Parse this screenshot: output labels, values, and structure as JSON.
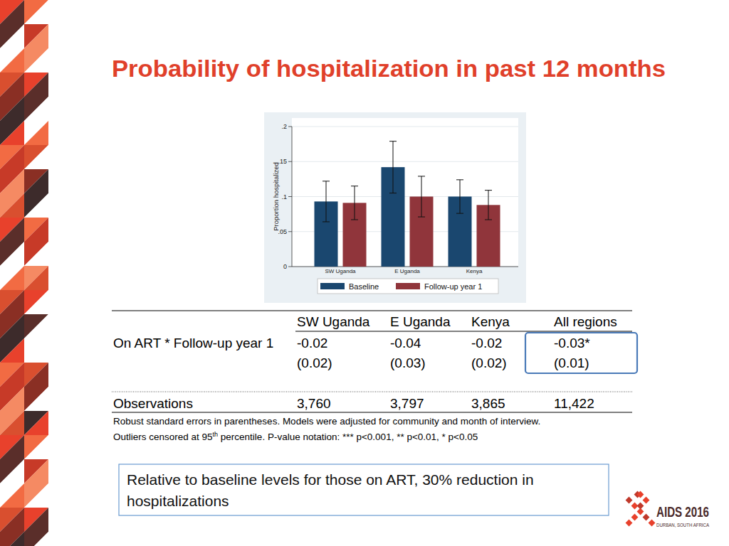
{
  "title": "Probability of hospitalization in past 12 months",
  "chart_data": {
    "type": "bar",
    "categories": [
      "SW Uganda",
      "E Uganda",
      "Kenya"
    ],
    "series": [
      {
        "name": "Baseline",
        "color": "#1a476f",
        "values": [
          0.093,
          0.142,
          0.1
        ],
        "errors": [
          0.029,
          0.037,
          0.024
        ]
      },
      {
        "name": "Follow-up year 1",
        "color": "#90353b",
        "values": [
          0.091,
          0.1,
          0.088
        ],
        "errors": [
          0.024,
          0.029,
          0.021
        ]
      }
    ],
    "ylabel": "Proportion hospitalized",
    "ylim": [
      0,
      0.2
    ],
    "yticks": [
      0,
      {
        "value": 0.05,
        "label": ".05"
      },
      {
        "value": 0.1,
        "label": ".1"
      },
      {
        "value": 0.15,
        "label": ".15"
      },
      {
        "value": 0.2,
        "label": ".2"
      }
    ],
    "grid": true,
    "legend": "bottom"
  },
  "table": {
    "columns": [
      "SW Uganda",
      "E Uganda",
      "Kenya",
      "All regions"
    ],
    "rows": [
      {
        "label": "On ART * Follow-up year 1",
        "values": [
          "-0.02",
          "-0.04",
          "-0.02",
          "-0.03*"
        ],
        "std_errors": [
          "(0.02)",
          "(0.03)",
          "(0.02)",
          "(0.01)"
        ]
      },
      {
        "label": "Observations",
        "values": [
          "3,760",
          "3,797",
          "3,865",
          "11,422"
        ]
      }
    ],
    "notes": [
      {
        "text": "Robust standard errors in parentheses. Models were adjusted for community and month of interview."
      },
      {
        "text": "Outliers censored at 95",
        "sup": "th",
        "after": " percentile. P-value notation: *** p<0.001, ** p<0.01, * p<0.05"
      }
    ]
  },
  "callout": "Relative to baseline levels for those on ART, 30% reduction in hospitalizations",
  "logo": {
    "name": "AIDS 2016",
    "place": "DURBAN, SOUTH AFRICA"
  }
}
